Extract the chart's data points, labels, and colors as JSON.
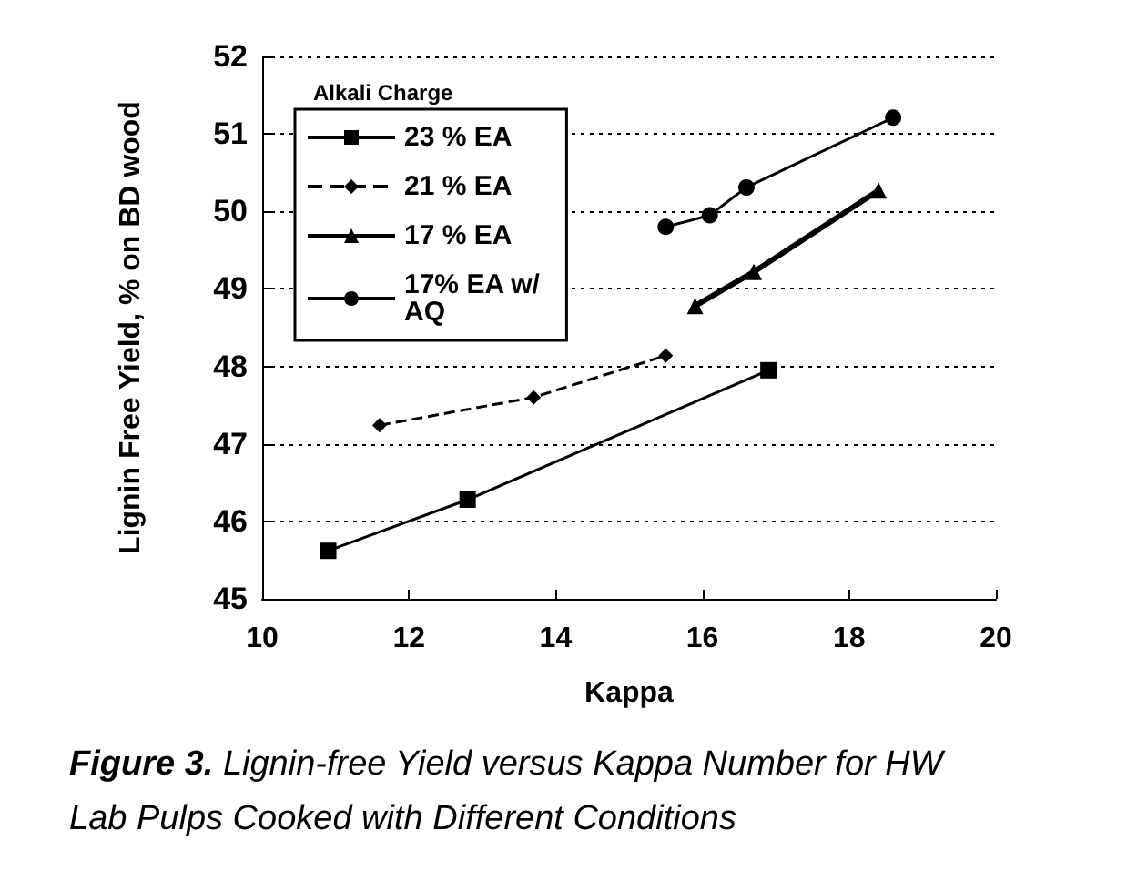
{
  "chart_data": {
    "type": "line",
    "title": "Figure 3. Lignin-free Yield versus Kappa Number for HW Lab Pulps Cooked with Different Conditions",
    "xlabel": "Kappa",
    "ylabel": "Lignin Free Yield, % on BD wood",
    "legend_title": "Alkali Charge",
    "xlim": [
      10,
      20
    ],
    "xticks": [
      10,
      12,
      14,
      16,
      18,
      20
    ],
    "ylim": [
      45,
      52
    ],
    "yticks": [
      45,
      46,
      47,
      48,
      49,
      50,
      51,
      52
    ],
    "grid": "y",
    "legend": "top left",
    "series": [
      {
        "name": "23 % EA",
        "color": "#000000",
        "marker": "square",
        "line_style": "solid",
        "x": [
          10.9,
          12.8,
          16.9
        ],
        "values": [
          45.62,
          46.28,
          47.95
        ]
      },
      {
        "name": "21 % EA",
        "color": "#000000",
        "marker": "diamond",
        "line_style": "dashed",
        "x": [
          11.6,
          13.7,
          15.5
        ],
        "values": [
          47.24,
          47.6,
          48.14
        ]
      },
      {
        "name": "17 % EA",
        "color": "#000000",
        "marker": "triangle",
        "line_style": "solid",
        "x": [
          15.9,
          16.7,
          18.4
        ],
        "values": [
          48.78,
          49.22,
          50.27
        ]
      },
      {
        "name": "17% EA w/ AQ",
        "color": "#000000",
        "marker": "circle",
        "line_style": "solid",
        "x": [
          15.5,
          16.1,
          16.6,
          18.6
        ],
        "values": [
          49.8,
          49.95,
          50.31,
          51.21
        ]
      }
    ]
  }
}
